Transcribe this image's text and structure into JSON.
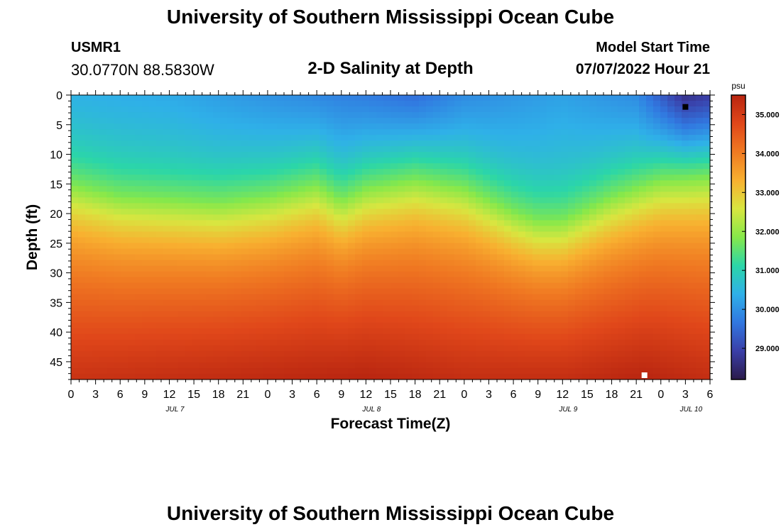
{
  "header": {
    "title": "University of Southern Mississippi Ocean Cube",
    "station_id": "USMR1",
    "coordinates": "30.0770N  88.5830W",
    "plot_title": "2-D Salinity at Depth",
    "model_start_label": "Model Start Time",
    "model_start_value": "07/07/2022 Hour 21"
  },
  "footer": {
    "title": "University of Southern Mississippi Ocean Cube"
  },
  "chart_data": {
    "type": "heatmap",
    "title": "2-D Salinity at Depth",
    "xlabel": "Forecast Time(Z)",
    "ylabel": "Depth (ft)",
    "x_hours_range": [
      0,
      78
    ],
    "ylim": [
      48,
      0
    ],
    "x_ticks": [
      {
        "h": 0,
        "label": "0"
      },
      {
        "h": 3,
        "label": "3"
      },
      {
        "h": 6,
        "label": "6"
      },
      {
        "h": 9,
        "label": "9"
      },
      {
        "h": 12,
        "label": "12"
      },
      {
        "h": 15,
        "label": "15"
      },
      {
        "h": 18,
        "label": "18"
      },
      {
        "h": 21,
        "label": "21"
      },
      {
        "h": 24,
        "label": "0"
      },
      {
        "h": 27,
        "label": "3"
      },
      {
        "h": 30,
        "label": "6"
      },
      {
        "h": 33,
        "label": "9"
      },
      {
        "h": 36,
        "label": "12"
      },
      {
        "h": 39,
        "label": "15"
      },
      {
        "h": 42,
        "label": "18"
      },
      {
        "h": 45,
        "label": "21"
      },
      {
        "h": 48,
        "label": "0"
      },
      {
        "h": 51,
        "label": "3"
      },
      {
        "h": 54,
        "label": "6"
      },
      {
        "h": 57,
        "label": "9"
      },
      {
        "h": 60,
        "label": "12"
      },
      {
        "h": 63,
        "label": "15"
      },
      {
        "h": 66,
        "label": "18"
      },
      {
        "h": 69,
        "label": "21"
      },
      {
        "h": 72,
        "label": "0"
      },
      {
        "h": 75,
        "label": "3"
      },
      {
        "h": 78,
        "label": "6"
      }
    ],
    "date_labels": [
      {
        "h": 12,
        "label": "JUL 7"
      },
      {
        "h": 36,
        "label": "JUL 8"
      },
      {
        "h": 60,
        "label": "JUL 9"
      },
      {
        "h": 75,
        "label": "JUL 10"
      }
    ],
    "y_ticks": [
      0,
      5,
      10,
      15,
      20,
      25,
      30,
      35,
      40,
      45
    ],
    "colorbar": {
      "unit": "psu",
      "min": 28.2,
      "max": 35.5,
      "ticks": [
        {
          "v": 35.0,
          "label": "35.000"
        },
        {
          "v": 34.0,
          "label": "34.000"
        },
        {
          "v": 33.0,
          "label": "33.000"
        },
        {
          "v": 32.0,
          "label": "32.000"
        },
        {
          "v": 31.0,
          "label": "31.000"
        },
        {
          "v": 30.0,
          "label": "30.000"
        },
        {
          "v": 29.0,
          "label": "29.000"
        }
      ],
      "colors": [
        "#2b1a4a",
        "#3a3fa8",
        "#3177e0",
        "#2fb0e8",
        "#2bd6a8",
        "#86e84a",
        "#d8e640",
        "#f8b030",
        "#f07a22",
        "#e0471a",
        "#b82510"
      ]
    },
    "markers": [
      {
        "label": "min",
        "h": 75,
        "depth": 2,
        "color": "#000000"
      },
      {
        "label": "max",
        "h": 70,
        "depth": 48,
        "color": "#ffffff"
      }
    ],
    "thermocline_depth_ft": [
      {
        "h": 0,
        "d": 15
      },
      {
        "h": 6,
        "d": 17
      },
      {
        "h": 12,
        "d": 17.5
      },
      {
        "h": 18,
        "d": 18
      },
      {
        "h": 24,
        "d": 17
      },
      {
        "h": 30,
        "d": 15
      },
      {
        "h": 33,
        "d": 17.5
      },
      {
        "h": 36,
        "d": 15.5
      },
      {
        "h": 42,
        "d": 14
      },
      {
        "h": 48,
        "d": 15.5
      },
      {
        "h": 54,
        "d": 19.5
      },
      {
        "h": 57,
        "d": 21
      },
      {
        "h": 60,
        "d": 21
      },
      {
        "h": 66,
        "d": 17
      },
      {
        "h": 72,
        "d": 14
      },
      {
        "h": 78,
        "d": 13.5
      }
    ],
    "surface_salinity_psu": [
      {
        "h": 0,
        "s": 30.4
      },
      {
        "h": 12,
        "s": 30.3
      },
      {
        "h": 24,
        "s": 30.0
      },
      {
        "h": 36,
        "s": 29.7
      },
      {
        "h": 42,
        "s": 29.5
      },
      {
        "h": 48,
        "s": 29.9
      },
      {
        "h": 60,
        "s": 30.2
      },
      {
        "h": 69,
        "s": 29.9
      },
      {
        "h": 75,
        "s": 28.6
      },
      {
        "h": 78,
        "s": 28.8
      }
    ],
    "bottom_salinity_psu": [
      {
        "h": 0,
        "s": 35.2
      },
      {
        "h": 12,
        "s": 35.3
      },
      {
        "h": 36,
        "s": 35.5
      },
      {
        "h": 48,
        "s": 35.3
      },
      {
        "h": 60,
        "s": 35.3
      },
      {
        "h": 70,
        "s": 35.5
      },
      {
        "h": 78,
        "s": 35.3
      }
    ]
  }
}
